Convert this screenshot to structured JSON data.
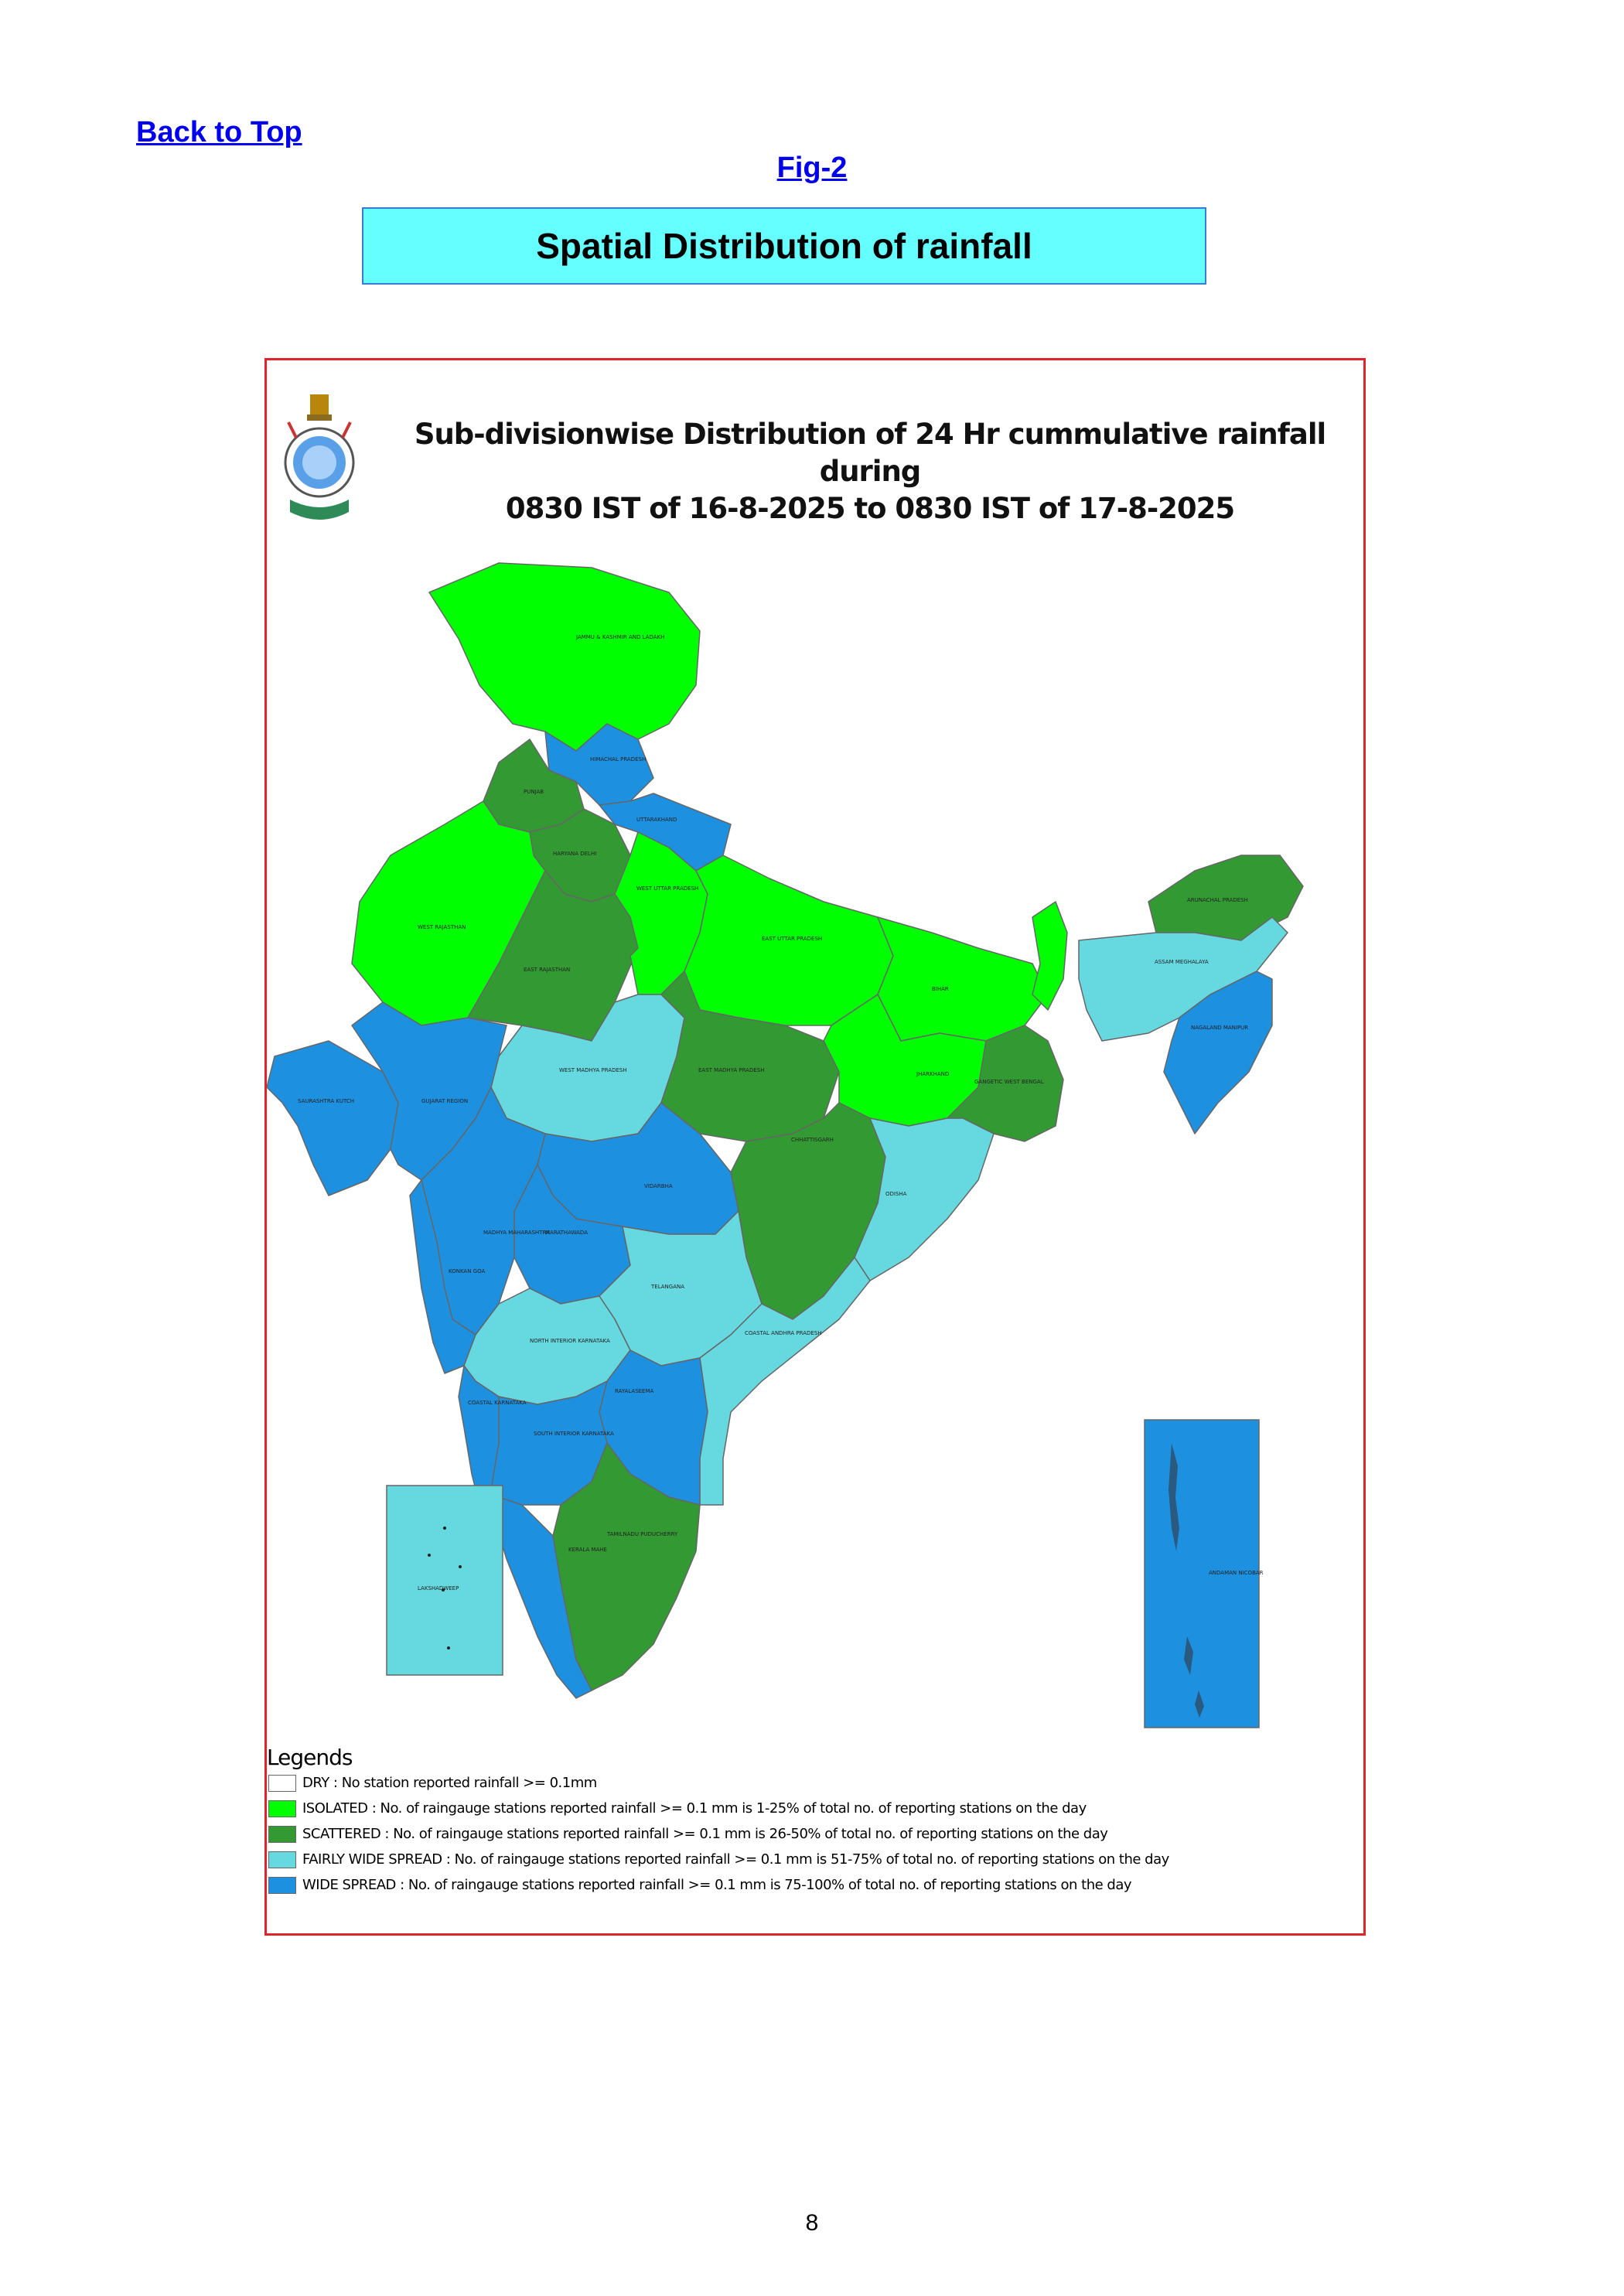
{
  "nav": {
    "back_to_top": "Back to Top",
    "fig_label": "Fig-2"
  },
  "header": {
    "title": "Spatial Distribution of rainfall"
  },
  "map": {
    "title_line1": "Sub-divisionwise Distribution of 24 Hr cummulative rainfall during",
    "title_line2": "0830 IST of 16-8-2025 to 0830 IST of 17-8-2025",
    "colors": {
      "dry": "#ffffff",
      "isolated": "#00ff00",
      "scattered": "#339933",
      "fairly_wide_spread": "#66d9e0",
      "wide_spread": "#1e90e0"
    },
    "subdivisions": [
      {
        "name": "JAMMU & KASHMIR AND LADAKH",
        "category": "isolated"
      },
      {
        "name": "HIMACHAL PRADESH",
        "category": "wide_spread"
      },
      {
        "name": "PUNJAB",
        "category": "scattered"
      },
      {
        "name": "UTTARAKHAND",
        "category": "wide_spread"
      },
      {
        "name": "HARYANA CHANDIGARH & DELHI",
        "category": "scattered"
      },
      {
        "name": "WEST RAJASTHAN",
        "category": "isolated"
      },
      {
        "name": "EAST RAJASTHAN",
        "category": "scattered"
      },
      {
        "name": "WEST UTTAR PRADESH",
        "category": "isolated"
      },
      {
        "name": "EAST UTTAR PRADESH",
        "category": "isolated"
      },
      {
        "name": "BIHAR",
        "category": "isolated"
      },
      {
        "name": "SUB-HIMALAYAN WEST BENGAL & SIKKIM",
        "category": "isolated"
      },
      {
        "name": "ARUNACHAL PRADESH",
        "category": "scattered"
      },
      {
        "name": "ASSAM & MEGHALAYA",
        "category": "fairly_wide_spread"
      },
      {
        "name": "NAGALAND MANIPUR MIZORAM & TRIPURA",
        "category": "wide_spread"
      },
      {
        "name": "WEST MADHYA PRADESH",
        "category": "fairly_wide_spread"
      },
      {
        "name": "EAST MADHYA PRADESH",
        "category": "scattered"
      },
      {
        "name": "JHARKHAND",
        "category": "isolated"
      },
      {
        "name": "GANGETIC WEST BENGAL",
        "category": "scattered"
      },
      {
        "name": "SAURASHTRA & KUTCH",
        "category": "wide_spread"
      },
      {
        "name": "GUJARAT REGION",
        "category": "wide_spread"
      },
      {
        "name": "CHHATTISGARH",
        "category": "scattered"
      },
      {
        "name": "ODISHA",
        "category": "fairly_wide_spread"
      },
      {
        "name": "VIDARBHA",
        "category": "wide_spread"
      },
      {
        "name": "MADHYA MAHARASHTRA",
        "category": "wide_spread"
      },
      {
        "name": "MARATHAWADA",
        "category": "wide_spread"
      },
      {
        "name": "KONKAN & GOA",
        "category": "wide_spread"
      },
      {
        "name": "TELANGANA",
        "category": "fairly_wide_spread"
      },
      {
        "name": "COASTAL ANDHRA PRADESH & YANAM",
        "category": "fairly_wide_spread"
      },
      {
        "name": "NORTH INTERIOR KARNATAKA",
        "category": "fairly_wide_spread"
      },
      {
        "name": "COASTAL KARNATAKA",
        "category": "wide_spread"
      },
      {
        "name": "SOUTH INTERIOR KARNATAKA",
        "category": "wide_spread"
      },
      {
        "name": "RAYALASEEMA",
        "category": "wide_spread"
      },
      {
        "name": "TAMILNADU PUDUCHERRY & KARAIKAL",
        "category": "scattered"
      },
      {
        "name": "KERALA & MAHE",
        "category": "wide_spread"
      },
      {
        "name": "LAKSHADWEEP",
        "category": "fairly_wide_spread"
      },
      {
        "name": "ANDAMAN & NICOBAR ISLAND",
        "category": "wide_spread"
      }
    ],
    "legend": {
      "title": "Legends",
      "items": [
        {
          "key": "dry",
          "color": "#ffffff",
          "text": "DRY : No station reported rainfall >= 0.1mm"
        },
        {
          "key": "isolated",
          "color": "#00ff00",
          "text": "ISOLATED : No. of raingauge stations reported rainfall >= 0.1 mm is 1-25% of total no. of reporting stations on the day"
        },
        {
          "key": "scattered",
          "color": "#339933",
          "text": "SCATTERED : No. of raingauge stations reported rainfall >= 0.1 mm is 26-50% of total no. of reporting stations on the day"
        },
        {
          "key": "fairly_wide_spread",
          "color": "#66d9e0",
          "text": "FAIRLY WIDE SPREAD : No. of raingauge stations reported rainfall >= 0.1 mm is 51-75% of total no. of reporting stations on the day"
        },
        {
          "key": "wide_spread",
          "color": "#1e90e0",
          "text": "WIDE SPREAD : No. of raingauge stations reported rainfall >= 0.1 mm is 75-100% of total no. of reporting stations on the day"
        }
      ]
    }
  },
  "footer": {
    "page_number": "8"
  }
}
